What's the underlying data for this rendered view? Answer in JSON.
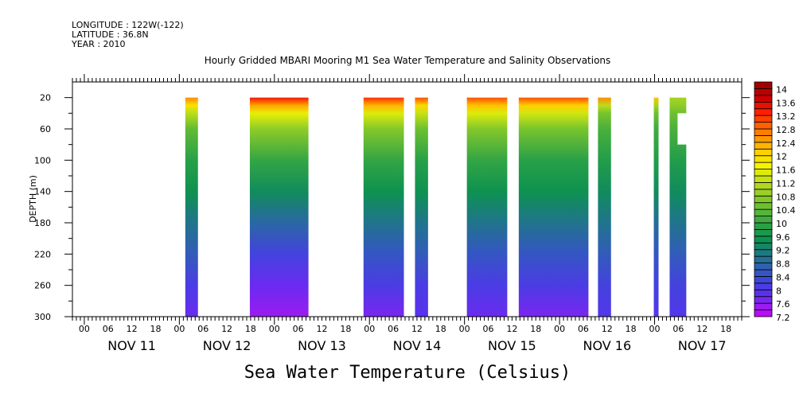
{
  "header": {
    "longitude": "LONGITUDE : 122W(-122)",
    "latitude": "LATITUDE : 36.8N",
    "year": "YEAR : 2010"
  },
  "chart_data": {
    "type": "heatmap",
    "title": "Hourly Gridded MBARI Mooring M1 Sea Water Temperature and Salinity Observations",
    "xlabel": "",
    "ylabel": "DEPTH (m)",
    "bottom_title": "Sea Water Temperature (Celsius)",
    "x_unit": "hours since NOV 11 00",
    "xlim": [
      -3,
      166
    ],
    "ylim": [
      300,
      0
    ],
    "y_ticks": [
      20,
      60,
      100,
      140,
      180,
      220,
      260,
      300
    ],
    "x_hour_labels": [
      "00",
      "06",
      "12",
      "18"
    ],
    "day_labels": [
      "NOV 11",
      "NOV 12",
      "NOV 13",
      "NOV 14",
      "NOV 15",
      "NOV 16",
      "NOV 17"
    ],
    "profile_depths": [
      20,
      30,
      40,
      60,
      100,
      140,
      180,
      220,
      260,
      300
    ],
    "segments": [
      {
        "start": 25.5,
        "end": 28.7,
        "temps": [
          12.6,
          11.9,
          11.2,
          10.4,
          9.9,
          9.5,
          9.0,
          8.6,
          8.1,
          7.8
        ]
      },
      {
        "start": 41.8,
        "end": 56.6,
        "temps": [
          13.4,
          12.4,
          11.6,
          10.8,
          10.0,
          9.4,
          8.8,
          8.2,
          7.8,
          7.5
        ]
      },
      {
        "start": 70.5,
        "end": 80.7,
        "temps": [
          13.2,
          12.3,
          11.5,
          10.7,
          10.0,
          9.5,
          9.0,
          8.5,
          8.1,
          7.7
        ]
      },
      {
        "start": 83.5,
        "end": 86.8,
        "temps": [
          13.0,
          12.0,
          11.3,
          10.5,
          9.9,
          9.5,
          9.0,
          8.6,
          8.1,
          7.9
        ]
      },
      {
        "start": 96.6,
        "end": 106.8,
        "temps": [
          13.0,
          12.2,
          11.5,
          10.7,
          10.0,
          9.5,
          9.0,
          8.5,
          8.1,
          7.8
        ]
      },
      {
        "start": 109.7,
        "end": 127.3,
        "temps": [
          13.0,
          12.1,
          11.4,
          10.6,
          9.9,
          9.5,
          9.0,
          8.5,
          8.1,
          7.7
        ]
      },
      {
        "start": 129.7,
        "end": 133.0,
        "temps": [
          12.6,
          11.2,
          10.6,
          10.2,
          9.8,
          9.4,
          9.0,
          8.6,
          8.2,
          8.0
        ]
      },
      {
        "start": 143.8,
        "end": 145.0,
        "temps": [
          12.2,
          11.0,
          10.5,
          10.1,
          9.8,
          9.4,
          8.9,
          8.5,
          8.2,
          8.0
        ]
      },
      {
        "start": 147.8,
        "end": 152.0,
        "temps": [
          11.0,
          10.8,
          10.5,
          10.2,
          9.8,
          9.4,
          9.0,
          8.6,
          8.2,
          8.0
        ]
      }
    ],
    "missing_regions": [
      {
        "start": 149.8,
        "end": 152.0,
        "depth_top": 40,
        "depth_bottom": 80
      }
    ],
    "colorbar": {
      "min": 7.2,
      "max": 14.2,
      "step": 0.2,
      "labels": [
        "14",
        "13.6",
        "13.2",
        "12.8",
        "12.4",
        "12",
        "11.6",
        "11.2",
        "10.8",
        "10.4",
        "10",
        "9.6",
        "9.2",
        "8.8",
        "8.4",
        "8",
        "7.6",
        "7.2"
      ],
      "color_stops": [
        [
          7.2,
          "#cc00ff"
        ],
        [
          7.5,
          "#9a1cf0"
        ],
        [
          7.9,
          "#5a30f0"
        ],
        [
          8.3,
          "#3c48d8"
        ],
        [
          8.7,
          "#2e62b0"
        ],
        [
          9.1,
          "#1c7a80"
        ],
        [
          9.5,
          "#0e9250"
        ],
        [
          9.9,
          "#28a048"
        ],
        [
          10.5,
          "#6cc030"
        ],
        [
          11.1,
          "#b0d820"
        ],
        [
          11.7,
          "#f4f400"
        ],
        [
          12.1,
          "#ffd000"
        ],
        [
          12.5,
          "#ff9800"
        ],
        [
          12.9,
          "#ff6000"
        ],
        [
          13.3,
          "#ff2000"
        ],
        [
          13.7,
          "#d00000"
        ],
        [
          14.2,
          "#960000"
        ]
      ]
    }
  }
}
